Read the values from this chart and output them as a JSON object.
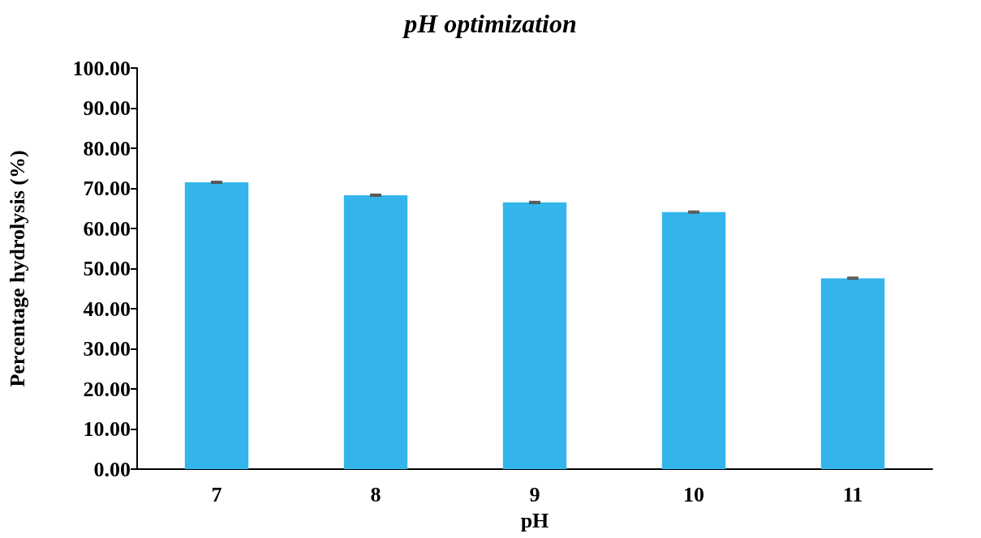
{
  "chart_data": {
    "type": "bar",
    "title": "pH optimization",
    "xlabel": "pH",
    "ylabel": "Percentage hydrolysis (%)",
    "categories": [
      "7",
      "8",
      "9",
      "10",
      "11"
    ],
    "values": [
      71.5,
      68.3,
      66.5,
      64.1,
      47.6
    ],
    "errors": [
      0.2,
      0.2,
      0.2,
      0.2,
      0.2
    ],
    "color": "#33b5ec",
    "ylim": [
      0,
      100
    ],
    "yticks": [
      {
        "value": 0,
        "label": "0.00"
      },
      {
        "value": 10,
        "label": "10.00"
      },
      {
        "value": 20,
        "label": "20.00"
      },
      {
        "value": 30,
        "label": "30.00"
      },
      {
        "value": 40,
        "label": "40.00"
      },
      {
        "value": 50,
        "label": "50.00"
      },
      {
        "value": 60,
        "label": "60.00"
      },
      {
        "value": 70,
        "label": "70.00"
      },
      {
        "value": 80,
        "label": "80.00"
      },
      {
        "value": 90,
        "label": "90.00"
      },
      {
        "value": 100,
        "label": "100.00"
      }
    ],
    "grid": false
  }
}
